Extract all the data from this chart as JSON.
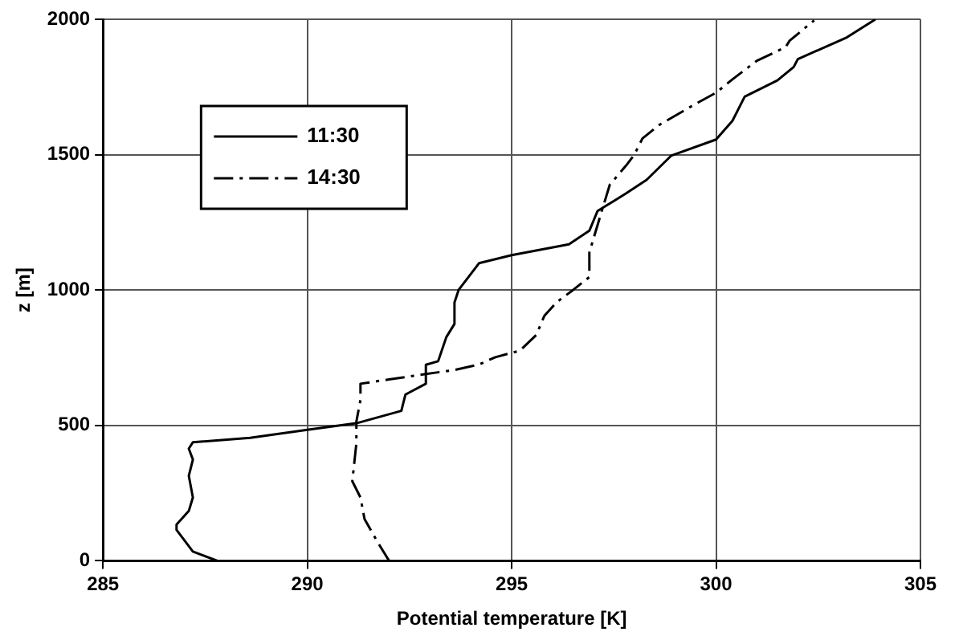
{
  "chart_data": {
    "type": "line",
    "xlabel": "Potential temperature [K]",
    "ylabel": "z [m]",
    "xlim": [
      285,
      305
    ],
    "xticks": [
      285,
      290,
      295,
      300,
      305
    ],
    "ylim": [
      0,
      2000
    ],
    "yticks": [
      0,
      500,
      1000,
      1500,
      2000
    ],
    "grid": true,
    "legend": "top left",
    "marker": "none",
    "series": [
      {
        "name": "11:30",
        "color": "#000000",
        "line_style": "solid",
        "x": [
          287.8,
          287.2,
          286.8,
          286.8,
          287.1,
          287.2,
          287.1,
          287.2,
          287.1,
          287.2,
          288.6,
          290,
          291.2,
          292.3,
          292.4,
          292.9,
          292.9,
          293.2,
          293.4,
          293.6,
          293.6,
          293.7,
          294.2,
          295,
          296.4,
          296.9,
          297.1,
          297.8,
          298.3,
          298.9,
          300,
          300.4,
          300.7,
          301.5,
          301.9,
          302,
          303.2,
          303.9
        ],
        "values": [
          0,
          34,
          114,
          134,
          184,
          234,
          314,
          374,
          414,
          438,
          454,
          484,
          508,
          554,
          614,
          654,
          724,
          737,
          826,
          875,
          954,
          1000,
          1099,
          1129,
          1169,
          1219,
          1292,
          1357,
          1407,
          1496,
          1556,
          1625,
          1714,
          1774,
          1824,
          1853,
          1933,
          2000
        ]
      },
      {
        "name": "14:30",
        "color": "#000000",
        "line_style": "dashed",
        "x": [
          292,
          291.7,
          291.4,
          291.3,
          291.1,
          291.2,
          291.2,
          291.3,
          291.3,
          292,
          293.6,
          294.2,
          294.6,
          295.2,
          295.6,
          295.8,
          296.1,
          296.5,
          296.9,
          296.9,
          297.2,
          297.4,
          297.8,
          298,
          298.2,
          298.6,
          299.4,
          300,
          300.4,
          301,
          301.7,
          301.8,
          302.4
        ],
        "values": [
          0,
          74,
          154,
          234,
          294,
          434,
          514,
          594,
          654,
          670,
          705,
          725,
          752,
          776,
          834,
          905,
          955,
          1000,
          1048,
          1139,
          1290,
          1389,
          1460,
          1500,
          1560,
          1609,
          1679,
          1729,
          1778,
          1847,
          1897,
          1921,
          1996
        ]
      }
    ]
  }
}
